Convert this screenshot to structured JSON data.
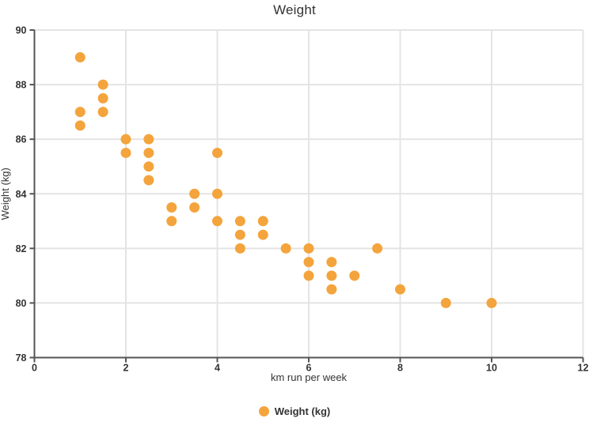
{
  "chart_data": {
    "type": "scatter",
    "title": "Weight",
    "xlabel": "km run per week",
    "ylabel": "Weight (kg)",
    "xlim": [
      0,
      12
    ],
    "ylim": [
      78,
      90
    ],
    "xticks": [
      0,
      2,
      4,
      6,
      8,
      10,
      12
    ],
    "yticks": [
      78,
      80,
      82,
      84,
      86,
      88,
      90
    ],
    "grid": true,
    "legend_position": "bottom",
    "colors": {
      "marker": "#F4A43C",
      "axis": "#545454",
      "grid": "#e4e4e4",
      "text": "#333333"
    },
    "series": [
      {
        "name": "Weight (kg)",
        "color": "#F4A43C",
        "points": [
          [
            1,
            89
          ],
          [
            1,
            87
          ],
          [
            1,
            86.5
          ],
          [
            1.5,
            88
          ],
          [
            1.5,
            87.5
          ],
          [
            1.5,
            87
          ],
          [
            2,
            86
          ],
          [
            2,
            85.5
          ],
          [
            2.5,
            86
          ],
          [
            2.5,
            85.5
          ],
          [
            2.5,
            85
          ],
          [
            2.5,
            84.5
          ],
          [
            3,
            83.5
          ],
          [
            3,
            83
          ],
          [
            3.5,
            84
          ],
          [
            3.5,
            83.5
          ],
          [
            4,
            85.5
          ],
          [
            4,
            84
          ],
          [
            4,
            83
          ],
          [
            4.5,
            83
          ],
          [
            4.5,
            82.5
          ],
          [
            4.5,
            82
          ],
          [
            5,
            83
          ],
          [
            5,
            82.5
          ],
          [
            5.5,
            82
          ],
          [
            6,
            82
          ],
          [
            6,
            81.5
          ],
          [
            6,
            81
          ],
          [
            6.5,
            81.5
          ],
          [
            6.5,
            81
          ],
          [
            6.5,
            80.5
          ],
          [
            7,
            81
          ],
          [
            7.5,
            82
          ],
          [
            8,
            80.5
          ],
          [
            9,
            80
          ],
          [
            10,
            80
          ]
        ]
      }
    ]
  }
}
